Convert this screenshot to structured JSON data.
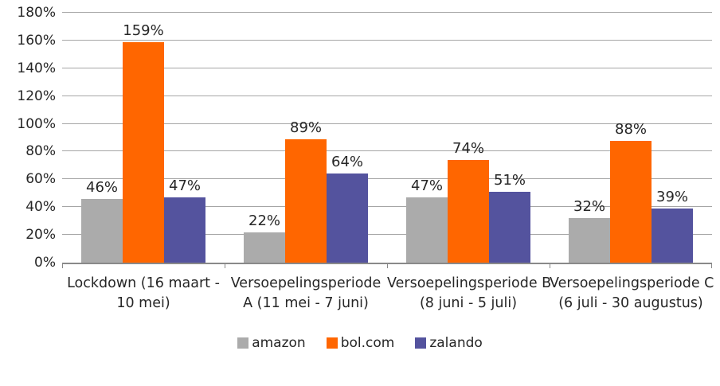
{
  "chart_data": {
    "type": "bar",
    "title": "",
    "categories": [
      {
        "label": "Lockdown (16 maart - 10 mei)",
        "lines": [
          "Lockdown (16 maart -",
          "10 mei)"
        ]
      },
      {
        "label": "Versoepelingsperiode A (11 mei - 7 juni)",
        "lines": [
          "Versoepelingsperiode",
          "A (11 mei - 7 juni)"
        ]
      },
      {
        "label": "Versoepelingsperiode B (8 juni - 5 juli)",
        "lines": [
          "Versoepelingsperiode B",
          "(8 juni - 5 juli)"
        ]
      },
      {
        "label": "Versoepelingsperiode C (6 juli - 30 augustus)",
        "lines": [
          "Versoepelingsperiode C",
          "(6 juli - 30 augustus)"
        ]
      }
    ],
    "series": [
      {
        "name": "amazon",
        "color": "#ABABAB",
        "values": [
          46,
          22,
          47,
          32
        ]
      },
      {
        "name": "bol.com",
        "color": "#FF6600",
        "values": [
          159,
          89,
          74,
          88
        ]
      },
      {
        "name": "zalando",
        "color": "#54539E",
        "values": [
          47,
          64,
          51,
          39
        ]
      }
    ],
    "value_suffix": "%",
    "y_axis": {
      "min": 0,
      "max": 180,
      "step": 20,
      "tick_suffix": "%"
    },
    "grid": true,
    "legend_position": "bottom"
  },
  "colors": {
    "gridline": "#A6A6A6",
    "axis_line": "#898989",
    "text": "#262626",
    "background": "#FFFFFF"
  }
}
